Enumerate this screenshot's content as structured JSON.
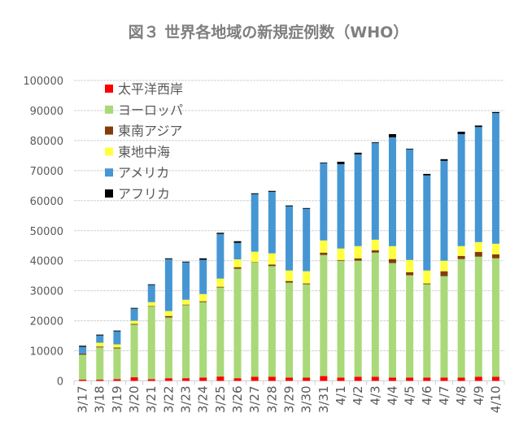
{
  "chart_data": {
    "type": "bar",
    "stacked": true,
    "title": "図３ 世界各地域の新規症例数（WHO）",
    "xlabel": "",
    "ylabel": "",
    "ylim": [
      0,
      100000
    ],
    "yticks": [
      "0",
      "10000",
      "20000",
      "30000",
      "40000",
      "50000",
      "60000",
      "70000",
      "80000",
      "90000",
      "100000"
    ],
    "grid": true,
    "legend_position": "top-left (inside plot)",
    "categories": [
      "3/17",
      "3/18",
      "3/19",
      "3/20",
      "3/21",
      "3/22",
      "3/23",
      "3/24",
      "3/25",
      "3/26",
      "3/27",
      "3/28",
      "3/29",
      "3/30",
      "3/31",
      "4/1",
      "4/2",
      "4/3",
      "4/4",
      "4/5",
      "4/6",
      "4/7",
      "4/8",
      "4/9",
      "4/10"
    ],
    "series": [
      {
        "name": "太平洋西岸",
        "color": "#ff0000",
        "values": [
          400,
          400,
          600,
          1200,
          550,
          900,
          900,
          1100,
          1450,
          900,
          1350,
          1350,
          1100,
          1100,
          1600,
          1100,
          1350,
          1350,
          1100,
          1100,
          1100,
          1100,
          1100,
          1350,
          1350
        ]
      },
      {
        "name": "ヨーロッパ",
        "color": "#a9d978",
        "values": [
          8300,
          10750,
          10200,
          17500,
          24200,
          20200,
          24300,
          25100,
          29650,
          36400,
          38050,
          36850,
          31600,
          31050,
          40300,
          38900,
          38650,
          41350,
          38100,
          34050,
          31050,
          33750,
          39450,
          40000,
          39450
        ]
      },
      {
        "name": "東南アジア",
        "color": "#843c0c",
        "values": [
          400,
          300,
          300,
          300,
          150,
          500,
          200,
          300,
          250,
          550,
          150,
          550,
          550,
          300,
          800,
          250,
          800,
          800,
          1350,
          1050,
          300,
          1650,
          1050,
          1600,
          1350
        ]
      },
      {
        "name": "東地中海",
        "color": "#ffff40",
        "values": [
          0,
          1250,
          1050,
          1000,
          1300,
          1650,
          1600,
          2400,
          2700,
          2600,
          3450,
          3700,
          3500,
          4050,
          4050,
          3800,
          4050,
          3500,
          4300,
          4050,
          4300,
          3500,
          3250,
          3250,
          3500
        ]
      },
      {
        "name": "アメリカ",
        "color": "#4596d3",
        "values": [
          2250,
          2400,
          4350,
          4050,
          5700,
          17250,
          12450,
          11400,
          14850,
          5500,
          19150,
          20500,
          21350,
          20800,
          25700,
          28100,
          30550,
          32200,
          36250,
          36800,
          31650,
          33250,
          37300,
          38300,
          43500
        ]
      },
      {
        "name": "アフリカ",
        "color": "#000000",
        "values": [
          350,
          300,
          250,
          250,
          250,
          300,
          250,
          500,
          400,
          550,
          300,
          300,
          300,
          250,
          250,
          800,
          550,
          250,
          1050,
          250,
          500,
          550,
          800,
          500,
          350
        ]
      }
    ]
  }
}
